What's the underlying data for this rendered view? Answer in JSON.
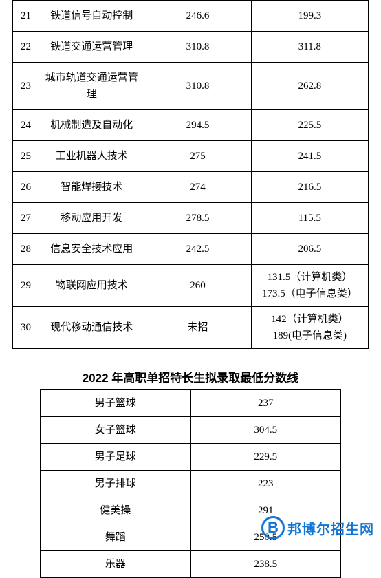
{
  "table1": {
    "border_color": "#000000",
    "font_size": 15,
    "rows": [
      {
        "idx": "21",
        "major": "铁道信号自动控制",
        "score1": "246.6",
        "score2": "199.3"
      },
      {
        "idx": "22",
        "major": "铁道交通运营管理",
        "score1": "310.8",
        "score2": "311.8"
      },
      {
        "idx": "23",
        "major": "城市轨道交通运营管理",
        "score1": "310.8",
        "score2": "262.8"
      },
      {
        "idx": "24",
        "major": "机械制造及自动化",
        "score1": "294.5",
        "score2": "225.5"
      },
      {
        "idx": "25",
        "major": "工业机器人技术",
        "score1": "275",
        "score2": "241.5"
      },
      {
        "idx": "26",
        "major": "智能焊接技术",
        "score1": "274",
        "score2": "216.5"
      },
      {
        "idx": "27",
        "major": "移动应用开发",
        "score1": "278.5",
        "score2": "115.5"
      },
      {
        "idx": "28",
        "major": "信息安全技术应用",
        "score1": "242.5",
        "score2": "206.5"
      },
      {
        "idx": "29",
        "major": "物联网应用技术",
        "score1": "260",
        "score2": "131.5（计算机类）\n173.5（电子信息类）"
      },
      {
        "idx": "30",
        "major": "现代移动通信技术",
        "score1": "未招",
        "score2": "142（计算机类）\n189(电子信息类)"
      }
    ]
  },
  "title2": "2022 年高职单招特长生拟录取最低分数线",
  "table2": {
    "border_color": "#000000",
    "font_size": 15,
    "rows": [
      {
        "category": "男子篮球",
        "score": "237"
      },
      {
        "category": "女子篮球",
        "score": "304.5"
      },
      {
        "category": "男子足球",
        "score": "229.5"
      },
      {
        "category": "男子排球",
        "score": "223"
      },
      {
        "category": "健美操",
        "score": "291"
      },
      {
        "category": "舞蹈",
        "score": "250.5"
      },
      {
        "category": "乐器",
        "score": "238.5"
      }
    ]
  },
  "watermark": {
    "letter": "B",
    "text": "邦博尔招生网",
    "color": "#1276d6"
  }
}
